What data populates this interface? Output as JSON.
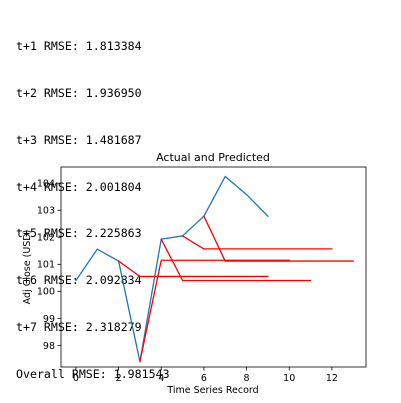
{
  "console": {
    "lines": [
      "t+1 RMSE: 1.813384",
      "t+2 RMSE: 1.936950",
      "t+3 RMSE: 1.481687",
      "t+4 RMSE: 2.001804",
      "t+5 RMSE: 2.225863",
      "t+6 RMSE: 2.092834",
      "t+7 RMSE: 2.318279",
      "Overall RMSE: 1.981543"
    ]
  },
  "chart_data": {
    "type": "line",
    "title": "Actual and Predicted",
    "xlabel": "Time Series Record",
    "ylabel": "Adj Close (USD)",
    "xlim": [
      -0.7,
      13.6
    ],
    "ylim": [
      97.2,
      104.6
    ],
    "xticks": [
      0,
      2,
      4,
      6,
      8,
      10,
      12
    ],
    "yticks": [
      98,
      99,
      100,
      101,
      102,
      103,
      104
    ],
    "grid": false,
    "series": [
      {
        "role": "actual",
        "color": "#1f77b4",
        "points": [
          [
            0,
            100.4
          ],
          [
            1,
            101.56
          ],
          [
            2,
            101.12
          ],
          [
            3,
            97.4
          ],
          [
            4,
            101.93
          ],
          [
            5,
            102.05
          ],
          [
            6,
            102.78
          ],
          [
            7,
            104.25
          ],
          [
            8,
            103.58
          ],
          [
            9,
            102.78
          ]
        ]
      },
      {
        "role": "forecast",
        "color": "#ff0000",
        "points": [
          [
            2,
            101.12
          ],
          [
            3,
            100.55
          ],
          [
            4,
            100.55
          ],
          [
            5,
            100.55
          ],
          [
            6,
            100.55
          ],
          [
            7,
            100.55
          ],
          [
            8,
            100.55
          ],
          [
            9,
            100.55
          ]
        ]
      },
      {
        "role": "forecast",
        "color": "#ff0000",
        "points": [
          [
            3,
            97.4
          ],
          [
            4,
            101.15
          ],
          [
            5,
            101.15
          ],
          [
            6,
            101.15
          ],
          [
            7,
            101.15
          ],
          [
            8,
            101.15
          ],
          [
            9,
            101.15
          ],
          [
            10,
            101.15
          ]
        ]
      },
      {
        "role": "forecast",
        "color": "#ff0000",
        "points": [
          [
            4,
            101.93
          ],
          [
            5,
            100.4
          ],
          [
            6,
            100.4
          ],
          [
            7,
            100.4
          ],
          [
            8,
            100.4
          ],
          [
            9,
            100.4
          ],
          [
            10,
            100.4
          ],
          [
            11,
            100.4
          ]
        ]
      },
      {
        "role": "forecast",
        "color": "#ff0000",
        "points": [
          [
            5,
            102.05
          ],
          [
            6,
            101.57
          ],
          [
            7,
            101.57
          ],
          [
            8,
            101.57
          ],
          [
            9,
            101.57
          ],
          [
            10,
            101.57
          ],
          [
            11,
            101.57
          ],
          [
            12,
            101.57
          ]
        ]
      },
      {
        "role": "forecast",
        "color": "#ff0000",
        "points": [
          [
            6,
            102.78
          ],
          [
            7,
            101.12
          ],
          [
            8,
            101.12
          ],
          [
            9,
            101.12
          ],
          [
            10,
            101.12
          ],
          [
            11,
            101.12
          ],
          [
            12,
            101.12
          ],
          [
            13,
            101.12
          ]
        ]
      }
    ]
  }
}
